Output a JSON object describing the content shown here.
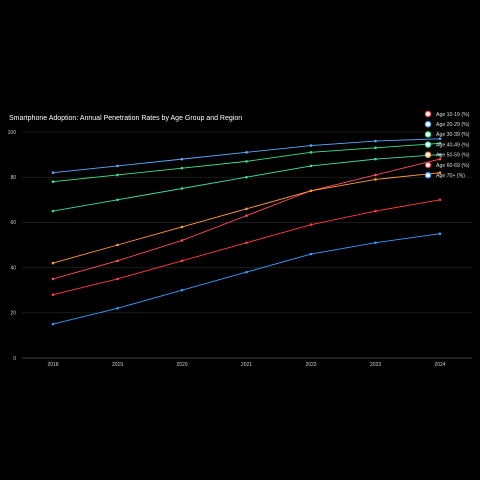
{
  "chart_data": {
    "type": "line",
    "title": "Smartphone Adoption: Annual Penetration Rates by Age Group and Region",
    "xlabel": "",
    "ylabel": "",
    "x": [
      "2018",
      "2019",
      "2020",
      "2021",
      "2022",
      "2023",
      "2024"
    ],
    "ylim": [
      0,
      100
    ],
    "yticks": [
      "0",
      "20",
      "40",
      "60",
      "80",
      "100"
    ],
    "grid": true,
    "legend_position": "top-right",
    "series": [
      {
        "name": "Age 10-19 (%)",
        "color": "#ff4d5a",
        "values": [
          35,
          43,
          52,
          63,
          74,
          81,
          88
        ]
      },
      {
        "name": "Age 20-29 (%)",
        "color": "#5aaaff",
        "values": [
          82,
          85,
          88,
          91,
          94,
          96,
          97
        ]
      },
      {
        "name": "Age 30-39 (%)",
        "color": "#3ee08c",
        "values": [
          78,
          81,
          84,
          87,
          91,
          93,
          95
        ]
      },
      {
        "name": "Age 40-49 (%)",
        "color": "#3ed9a8",
        "values": [
          65,
          70,
          75,
          80,
          85,
          88,
          90
        ]
      },
      {
        "name": "Age 50-59 (%)",
        "color": "#ff9a3c",
        "values": [
          42,
          50,
          58,
          66,
          74,
          79,
          82
        ]
      },
      {
        "name": "Age 60-69 (%)",
        "color": "#ff3b3b",
        "values": [
          28,
          35,
          43,
          51,
          59,
          65,
          70
        ]
      },
      {
        "name": "Age 70+ (%)",
        "color": "#3a9bff",
        "values": [
          15,
          22,
          30,
          38,
          46,
          51,
          55
        ]
      }
    ]
  }
}
